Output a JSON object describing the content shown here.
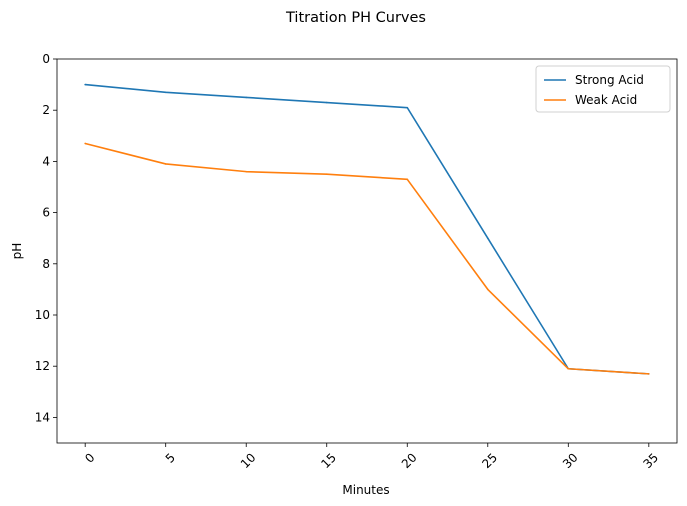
{
  "chart_data": {
    "type": "line",
    "title": "Titration PH Curves",
    "xlabel": "Minutes",
    "ylabel": "pH",
    "x": [
      0,
      5,
      10,
      15,
      20,
      25,
      30,
      35
    ],
    "x_ticks": [
      "0",
      "5",
      "10",
      "15",
      "20",
      "25",
      "30",
      "35"
    ],
    "x_tick_rotation": 45,
    "xlim": [
      -1.75,
      36.75
    ],
    "ylim": [
      15,
      0
    ],
    "y_inverted": true,
    "y_ticks": [
      "0",
      "2",
      "4",
      "6",
      "8",
      "10",
      "12",
      "14"
    ],
    "grid": false,
    "legend_position": "top-right",
    "series": [
      {
        "name": "Strong Acid",
        "color": "#1f77b4",
        "values": [
          1.0,
          1.3,
          1.5,
          1.7,
          1.9,
          7.0,
          12.1,
          12.3
        ]
      },
      {
        "name": "Weak Acid",
        "color": "#ff7f0e",
        "values": [
          3.3,
          4.1,
          4.4,
          4.5,
          4.7,
          9.0,
          12.1,
          12.3
        ]
      }
    ]
  }
}
